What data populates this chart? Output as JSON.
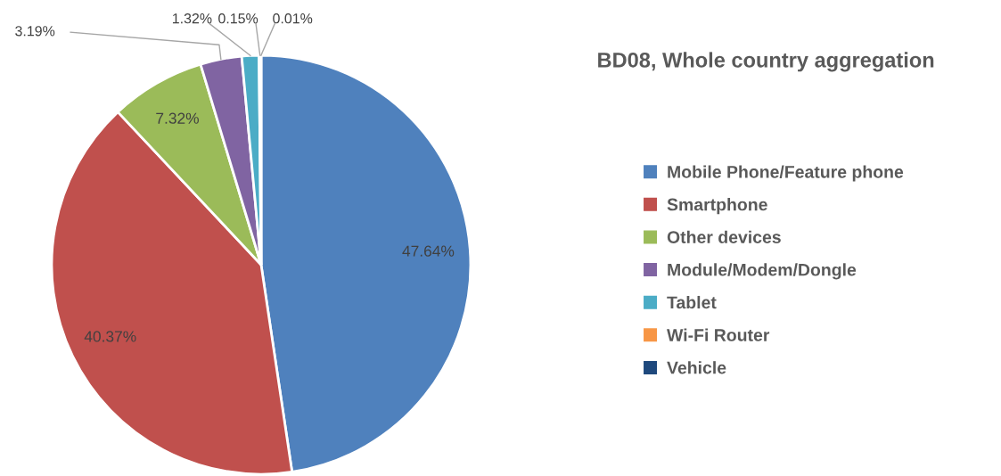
{
  "chart_data": {
    "type": "pie",
    "title": "BD08, Whole country aggregation",
    "categories": [
      "Mobile Phone/Feature phone",
      "Smartphone",
      "Other devices",
      "Module/Modem/Dongle",
      "Tablet",
      "Wi-Fi Router",
      "Vehicle"
    ],
    "values": [
      47.64,
      40.37,
      7.32,
      3.19,
      1.32,
      0.15,
      0.01
    ],
    "colors": [
      "#4f81bd",
      "#c0504d",
      "#9bbb59",
      "#8064a2",
      "#4bacc6",
      "#f79646",
      "#1f497d"
    ],
    "value_labels": [
      "47.64%",
      "40.37%",
      "7.32%",
      "3.19%",
      "1.32%",
      "0.15%",
      "0.01%"
    ],
    "legend": "right"
  }
}
